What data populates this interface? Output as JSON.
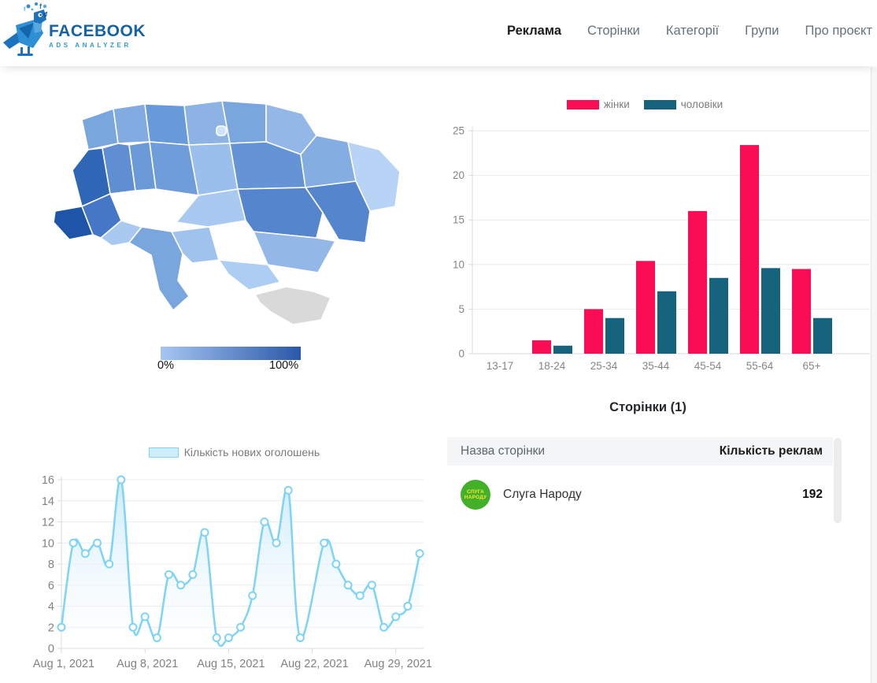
{
  "header": {
    "logo": {
      "line1": "FACEBOOK",
      "line2": "ADS ANALYZER"
    },
    "nav": [
      {
        "label": "Реклама",
        "active": true
      },
      {
        "label": "Сторінки",
        "active": false
      },
      {
        "label": "Категорії",
        "active": false
      },
      {
        "label": "Групи",
        "active": false
      },
      {
        "label": "Про проєкт",
        "active": false
      }
    ]
  },
  "map": {
    "legend": {
      "min_label": "0%",
      "max_label": "100%",
      "gradient_start": "#a6c6f0",
      "gradient_end": "#2a58a9"
    },
    "no_data_color": "#d9d9d9",
    "regions": [
      {
        "name": "Волинська",
        "color": "#7aa6de"
      },
      {
        "name": "Рівненська",
        "color": "#82abe1"
      },
      {
        "name": "Житомирська",
        "color": "#6899d8"
      },
      {
        "name": "Київська",
        "color": "#8db3e5"
      },
      {
        "name": "Чернігівська",
        "color": "#7aa6de"
      },
      {
        "name": "Сумська",
        "color": "#93b8e8"
      },
      {
        "name": "Львівська",
        "color": "#2f66b5"
      },
      {
        "name": "Тернопільська",
        "color": "#5f8ed3"
      },
      {
        "name": "Хмельницька",
        "color": "#6b9ad9"
      },
      {
        "name": "Вінницька",
        "color": "#6f9cdb"
      },
      {
        "name": "Черкаська",
        "color": "#9bbfec"
      },
      {
        "name": "Полтавська",
        "color": "#6494d6"
      },
      {
        "name": "Харківська",
        "color": "#84ade2"
      },
      {
        "name": "Луганська",
        "color": "#b7d3f5"
      },
      {
        "name": "Донецька",
        "color": "#5585cd"
      },
      {
        "name": "Закарпатська",
        "color": "#1f55a8"
      },
      {
        "name": "Івано-Франківська",
        "color": "#4577c6"
      },
      {
        "name": "Чернівецька",
        "color": "#a9c9f1"
      },
      {
        "name": "Одеська",
        "color": "#7aa6de"
      },
      {
        "name": "Миколаївська",
        "color": "#a0c3ee"
      },
      {
        "name": "Кіровоградська",
        "color": "#a9c9f1"
      },
      {
        "name": "Дніпропетровська",
        "color": "#5585cd"
      },
      {
        "name": "Запорізька",
        "color": "#93b8e8"
      },
      {
        "name": "Херсонська",
        "color": "#aecdf3"
      },
      {
        "name": "Крим",
        "color": "#d9d9d9"
      },
      {
        "name": "Київ",
        "color": "#cfe4fa"
      }
    ]
  },
  "chart_data": [
    {
      "type": "bar",
      "title": "",
      "categories": [
        "13-17",
        "18-24",
        "25-34",
        "35-44",
        "45-54",
        "55-64",
        "65+"
      ],
      "series": [
        {
          "name": "жінки",
          "color": "#fb0d55",
          "values": [
            0,
            1.5,
            5,
            10.4,
            16,
            23.4,
            9.5
          ]
        },
        {
          "name": "чоловіки",
          "color": "#16637e",
          "values": [
            0,
            0.9,
            4,
            7,
            8.5,
            9.6,
            4
          ]
        }
      ],
      "ylim": [
        0,
        25
      ],
      "ytick_step": 5,
      "legend_position": "top",
      "grid": true
    },
    {
      "type": "area",
      "legend": "Кількість нових оголошень",
      "color": "#7ed3f7",
      "fill_top": "#c9e9fa",
      "fill_bottom": "#ffffff",
      "x_tick_labels": [
        "Aug 1, 2021",
        "Aug 8, 2021",
        "Aug 15, 2021",
        "Aug 22, 2021",
        "Aug 29, 2021"
      ],
      "x_days": "Aug 1 - Aug 31, 2021 (daily)",
      "values": [
        2,
        10,
        9,
        10,
        8,
        16,
        2,
        3,
        1,
        7,
        6,
        7,
        11,
        1,
        1,
        2,
        5,
        12,
        10,
        15,
        1,
        null,
        10,
        8,
        6,
        5,
        6,
        2,
        3,
        4,
        9
      ],
      "ylim": [
        0,
        16
      ],
      "ytick_step": 2,
      "grid": true
    }
  ],
  "pages": {
    "title": "Сторінки (1)",
    "table": {
      "columns": [
        "Назва сторінки",
        "Кількість реклам"
      ],
      "rows": [
        {
          "name": "Слуга Народу",
          "ads_count": "192",
          "avatar_line1": "СЛУГА",
          "avatar_line2": "НАРОДУ",
          "avatar_bg": "#43b02a",
          "avatar_text_color": "#f6e72c"
        }
      ]
    }
  }
}
